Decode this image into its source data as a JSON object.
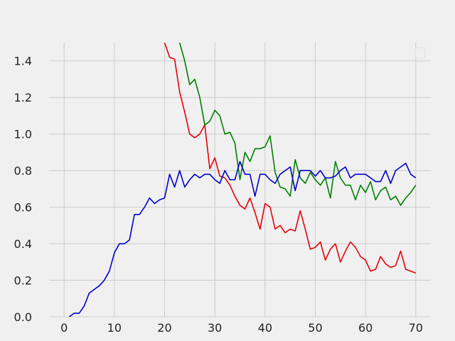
{
  "chart_data": {
    "type": "line",
    "title": "",
    "xlabel": "",
    "ylabel": "",
    "xlim": [
      -3,
      73
    ],
    "ylim": [
      0,
      1.5
    ],
    "xticks": [
      0,
      10,
      20,
      30,
      40,
      50,
      60,
      70
    ],
    "yticks": [
      0.0,
      0.2,
      0.4,
      0.6,
      0.8,
      1.0,
      1.2,
      1.4
    ],
    "grid": true,
    "legend": "top-right (empty)",
    "series": [
      {
        "color": "#e8000b",
        "x": [
          20,
          21,
          22,
          23,
          24,
          25,
          26,
          27,
          28,
          29,
          30,
          31,
          32,
          33,
          34,
          35,
          36,
          37,
          38,
          39,
          40,
          41,
          42,
          43,
          44,
          45,
          46,
          47,
          48,
          49,
          50,
          51,
          52,
          53,
          54,
          55,
          56,
          57,
          58,
          59,
          60,
          61,
          62,
          63,
          64,
          65,
          66,
          67,
          68,
          69,
          70
        ],
        "y": [
          1.5,
          1.42,
          1.41,
          1.23,
          1.12,
          1.0,
          0.98,
          1.0,
          1.05,
          0.81,
          0.87,
          0.77,
          0.76,
          0.72,
          0.66,
          0.61,
          0.59,
          0.65,
          0.57,
          0.48,
          0.62,
          0.6,
          0.48,
          0.5,
          0.46,
          0.48,
          0.47,
          0.58,
          0.48,
          0.37,
          0.38,
          0.41,
          0.31,
          0.37,
          0.4,
          0.3,
          0.36,
          0.41,
          0.38,
          0.33,
          0.31,
          0.25,
          0.26,
          0.33,
          0.29,
          0.27,
          0.28,
          0.36,
          0.26,
          0.25,
          0.24
        ]
      },
      {
        "color": "#008000",
        "x": [
          23,
          24,
          25,
          26,
          27,
          28,
          29,
          30,
          31,
          32,
          33,
          34,
          35,
          36,
          37,
          38,
          39,
          40,
          41,
          42,
          43,
          44,
          45,
          46,
          47,
          48,
          49,
          50,
          51,
          52,
          53,
          54,
          55,
          56,
          57,
          58,
          59,
          60,
          61,
          62,
          63,
          64,
          65,
          66,
          67,
          68,
          69,
          70
        ],
        "y": [
          1.5,
          1.4,
          1.27,
          1.3,
          1.2,
          1.05,
          1.07,
          1.13,
          1.1,
          1.0,
          1.01,
          0.95,
          0.75,
          0.9,
          0.85,
          0.92,
          0.92,
          0.93,
          0.99,
          0.79,
          0.71,
          0.7,
          0.66,
          0.86,
          0.76,
          0.73,
          0.79,
          0.75,
          0.72,
          0.76,
          0.65,
          0.85,
          0.76,
          0.72,
          0.72,
          0.64,
          0.72,
          0.68,
          0.74,
          0.64,
          0.69,
          0.71,
          0.64,
          0.66,
          0.61,
          0.65,
          0.68,
          0.72
        ]
      },
      {
        "color": "#0000cc",
        "x": [
          1,
          2,
          3,
          4,
          5,
          6,
          7,
          8,
          9,
          10,
          11,
          12,
          13,
          14,
          15,
          16,
          17,
          18,
          19,
          20,
          21,
          22,
          23,
          24,
          25,
          26,
          27,
          28,
          29,
          30,
          31,
          32,
          33,
          34,
          35,
          36,
          37,
          38,
          39,
          40,
          41,
          42,
          43,
          44,
          45,
          46,
          47,
          48,
          49,
          50,
          51,
          52,
          53,
          54,
          55,
          56,
          57,
          58,
          59,
          60,
          61,
          62,
          63,
          64,
          65,
          66,
          67,
          68,
          69,
          70
        ],
        "y": [
          0.0,
          0.02,
          0.02,
          0.06,
          0.13,
          0.15,
          0.17,
          0.2,
          0.25,
          0.35,
          0.4,
          0.4,
          0.42,
          0.56,
          0.56,
          0.6,
          0.65,
          0.62,
          0.64,
          0.65,
          0.78,
          0.71,
          0.8,
          0.71,
          0.75,
          0.78,
          0.76,
          0.78,
          0.78,
          0.75,
          0.73,
          0.8,
          0.75,
          0.75,
          0.85,
          0.78,
          0.78,
          0.66,
          0.78,
          0.78,
          0.75,
          0.73,
          0.78,
          0.8,
          0.82,
          0.69,
          0.8,
          0.8,
          0.8,
          0.77,
          0.8,
          0.76,
          0.76,
          0.77,
          0.8,
          0.82,
          0.76,
          0.78,
          0.78,
          0.78,
          0.76,
          0.74,
          0.74,
          0.8,
          0.73,
          0.8,
          0.82,
          0.84,
          0.78,
          0.76
        ]
      }
    ]
  }
}
